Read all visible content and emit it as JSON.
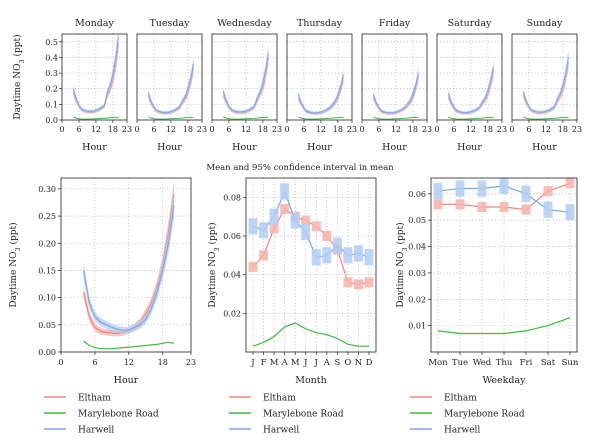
{
  "colors": {
    "Eltham": "#f0847f",
    "Marylebone Road": "#3dbb3d",
    "Harwell": "#7aa6e8"
  },
  "band_colors": {
    "Eltham": "#f6b3ad",
    "Marylebone Road": "#9fe09f",
    "Harwell": "#b3cdf3"
  },
  "chart_data": [
    {
      "type": "line",
      "title": "",
      "xlabel": "Hour",
      "ylabel": "Daytime NO3 (ppt)",
      "ylabel_main": "Daytime NO",
      "ylabel_sub": "3",
      "ylabel_unit": " (ppt)",
      "xlim": [
        0,
        23
      ],
      "ylim": [
        0,
        0.55
      ],
      "xticks": [
        "0",
        "6",
        "12",
        "18",
        "23"
      ],
      "yticks": [
        "0.0",
        "0.1",
        "0.2",
        "0.3",
        "0.4",
        "0.5"
      ],
      "panels": [
        {
          "title": "Monday",
          "peak": 0.53
        },
        {
          "title": "Tuesday",
          "peak": 0.36
        },
        {
          "title": "Wednesday",
          "peak": 0.43
        },
        {
          "title": "Thursday",
          "peak": 0.29
        },
        {
          "title": "Friday",
          "peak": 0.3
        },
        {
          "title": "Saturday",
          "peak": 0.34
        },
        {
          "title": "Sunday",
          "peak": 0.4
        }
      ],
      "x": [
        4,
        5,
        6,
        7,
        8,
        9,
        10,
        11,
        12,
        13,
        14,
        15,
        16,
        17,
        18,
        19,
        20
      ],
      "series": [
        {
          "name": "Eltham",
          "values": [
            0.14,
            0.1,
            0.07,
            0.05,
            0.045,
            0.04,
            0.04,
            0.04,
            0.045,
            0.05,
            0.06,
            0.07,
            0.08,
            0.1,
            0.13,
            0.18,
            0.25
          ]
        },
        {
          "name": "Marylebone Road",
          "values": [
            0.02,
            0.012,
            0.008,
            0.006,
            0.006,
            0.006,
            0.006,
            0.007,
            0.008,
            0.009,
            0.01,
            0.011,
            0.012,
            0.014,
            0.016,
            0.018,
            0.016
          ]
        },
        {
          "name": "Harwell",
          "values": [
            0.16,
            0.11,
            0.075,
            0.055,
            0.05,
            0.045,
            0.045,
            0.045,
            0.05,
            0.055,
            0.065,
            0.075,
            0.09,
            0.11,
            0.15,
            0.2,
            0.27
          ]
        }
      ]
    },
    {
      "type": "line",
      "title": "",
      "xlabel": "Hour",
      "ylabel": "Daytime NO3 (ppt)",
      "xlim": [
        0,
        23
      ],
      "ylim": [
        0,
        0.32
      ],
      "xticks": [
        "0",
        "6",
        "12",
        "18",
        "23"
      ],
      "yticks": [
        "0.00",
        "0.05",
        "0.10",
        "0.15",
        "0.20",
        "0.25",
        "0.30"
      ],
      "x": [
        4,
        5,
        6,
        7,
        8,
        9,
        10,
        11,
        12,
        13,
        14,
        15,
        16,
        17,
        18,
        19,
        20
      ],
      "series": [
        {
          "name": "Eltham",
          "values": [
            0.11,
            0.065,
            0.045,
            0.038,
            0.036,
            0.035,
            0.034,
            0.036,
            0.04,
            0.045,
            0.055,
            0.07,
            0.09,
            0.12,
            0.16,
            0.22,
            0.29
          ]
        },
        {
          "name": "Marylebone Road",
          "values": [
            0.02,
            0.012,
            0.008,
            0.006,
            0.006,
            0.006,
            0.007,
            0.008,
            0.009,
            0.01,
            0.011,
            0.012,
            0.013,
            0.014,
            0.016,
            0.018,
            0.016
          ]
        },
        {
          "name": "Harwell",
          "values": [
            0.15,
            0.09,
            0.065,
            0.055,
            0.05,
            0.045,
            0.042,
            0.04,
            0.04,
            0.045,
            0.05,
            0.06,
            0.08,
            0.11,
            0.15,
            0.2,
            0.27
          ]
        }
      ]
    },
    {
      "type": "line",
      "title": "Mean and 95% confidence interval in mean",
      "xlabel": "Month",
      "ylabel": "Daytime NO3 (ppt)",
      "ylim": [
        0,
        0.09
      ],
      "categories": [
        "J",
        "F",
        "M",
        "A",
        "M",
        "J",
        "J",
        "A",
        "S",
        "O",
        "N",
        "D"
      ],
      "yticks": [
        "0.02",
        "0.04",
        "0.06",
        "0.08"
      ],
      "series": [
        {
          "name": "Eltham",
          "values": [
            0.044,
            0.05,
            0.064,
            0.074,
            0.07,
            0.068,
            0.065,
            0.06,
            0.053,
            0.036,
            0.035,
            0.036
          ]
        },
        {
          "name": "Marylebone Road",
          "values": [
            0.003,
            0.005,
            0.008,
            0.013,
            0.015,
            0.012,
            0.01,
            0.009,
            0.007,
            0.004,
            0.003,
            0.003
          ]
        },
        {
          "name": "Harwell",
          "values": [
            0.065,
            0.063,
            0.07,
            0.083,
            0.068,
            0.062,
            0.049,
            0.05,
            0.055,
            0.05,
            0.051,
            0.049
          ]
        }
      ]
    },
    {
      "type": "line",
      "title": "",
      "xlabel": "Weekday",
      "ylabel": "Daytime NO3 (ppt)",
      "ylim": [
        0,
        0.066
      ],
      "categories": [
        "Mon",
        "Tue",
        "Wed",
        "Thu",
        "Fri",
        "Sat",
        "Sun"
      ],
      "yticks": [
        "0.01",
        "0.02",
        "0.03",
        "0.04",
        "0.05",
        "0.06"
      ],
      "series": [
        {
          "name": "Eltham",
          "values": [
            0.056,
            0.056,
            0.055,
            0.055,
            0.054,
            0.061,
            0.064
          ]
        },
        {
          "name": "Marylebone Road",
          "values": [
            0.008,
            0.007,
            0.007,
            0.007,
            0.008,
            0.01,
            0.013
          ]
        },
        {
          "name": "Harwell",
          "values": [
            0.061,
            0.062,
            0.062,
            0.063,
            0.06,
            0.054,
            0.053
          ]
        }
      ]
    }
  ],
  "legend": [
    "Eltham",
    "Marylebone Road",
    "Harwell"
  ]
}
